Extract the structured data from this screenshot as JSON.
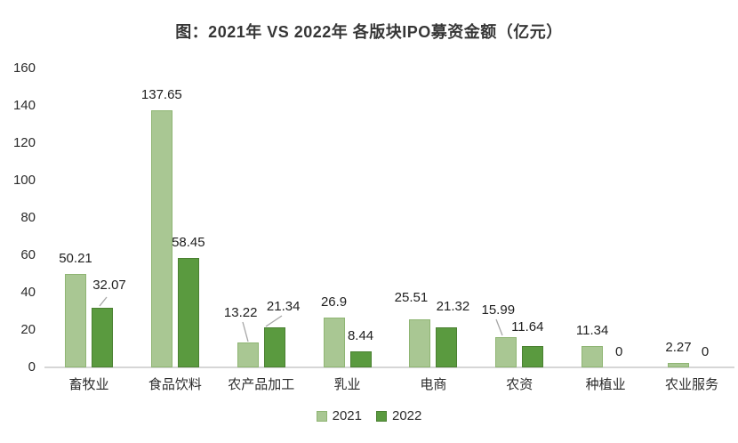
{
  "title": "图：2021年 VS 2022年 各版块IPO募资金额（亿元）",
  "colors": {
    "series_2021_fill": "#a9c793",
    "series_2021_border": "#8fb573",
    "series_2022_fill": "#5a9a3f",
    "series_2022_border": "#4a8031",
    "axis_line": "#d6d6d6",
    "leader_line": "#a6a6a6",
    "text": "#2b2b2b"
  },
  "chart_data": {
    "type": "bar",
    "title": "图：2021年 VS 2022年 各版块IPO募资金额（亿元）",
    "categories": [
      "畜牧业",
      "食品饮料",
      "农产品加工",
      "乳业",
      "电商",
      "农资",
      "种植业",
      "农业服务"
    ],
    "series": [
      {
        "name": "2021",
        "fill": "#a9c793",
        "values": [
          50.21,
          137.65,
          13.22,
          26.9,
          25.51,
          15.99,
          11.34,
          2.27
        ],
        "labels": [
          "50.21",
          "137.65",
          "13.22",
          "26.9",
          "25.51",
          "15.99",
          "11.34",
          "2.27"
        ]
      },
      {
        "name": "2022",
        "fill": "#5a9a3f",
        "values": [
          32.07,
          58.45,
          21.34,
          8.44,
          21.32,
          11.64,
          0,
          0
        ],
        "labels": [
          "32.07",
          "58.45",
          "21.34",
          "8.44",
          "21.32",
          "11.64",
          "0",
          "0"
        ]
      }
    ],
    "ylim": [
      0,
      160
    ],
    "yticks": [
      0,
      20,
      40,
      60,
      80,
      100,
      120,
      140,
      160
    ],
    "grid": false,
    "data_labels": true,
    "legend_position": "bottom"
  }
}
